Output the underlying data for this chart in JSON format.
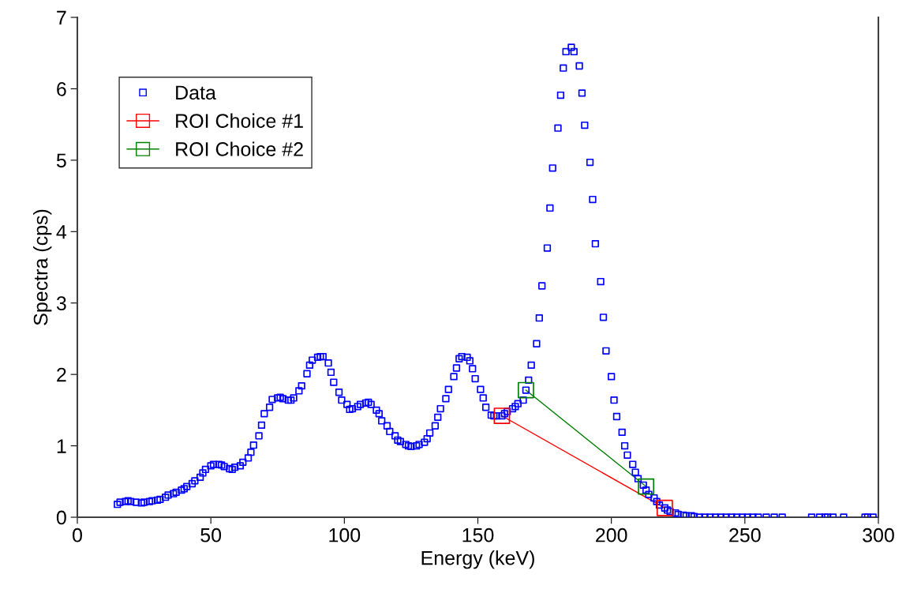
{
  "chart_data": {
    "type": "scatter",
    "xlabel": "Energy (keV)",
    "ylabel": "Spectra (cps)",
    "xlim": [
      0,
      300
    ],
    "xticks": [
      0,
      50,
      100,
      150,
      200,
      250,
      300
    ],
    "ylim": [
      0,
      7
    ],
    "yticks": [
      0,
      1,
      2,
      3,
      4,
      5,
      6,
      7
    ],
    "grid": false,
    "legend": "top left",
    "marker": "square",
    "series": [
      {
        "name": "Data",
        "color": "#0000ff",
        "x": [
          15,
          16,
          18,
          19,
          20,
          22,
          24,
          25,
          27,
          28,
          30,
          31,
          33,
          34,
          36,
          37,
          39,
          40,
          41,
          43,
          44,
          46,
          47,
          48,
          50,
          51,
          53,
          54,
          55,
          57,
          58,
          59,
          61,
          62,
          64,
          65,
          66,
          68,
          69,
          70,
          72,
          73,
          75,
          76,
          77,
          79,
          80,
          81,
          83,
          84,
          86,
          87,
          88,
          90,
          91,
          92,
          94,
          95,
          96,
          98,
          99,
          101,
          102,
          103,
          105,
          106,
          108,
          109,
          110,
          112,
          113,
          114,
          116,
          117,
          119,
          120,
          121,
          123,
          124,
          125,
          127,
          128,
          130,
          131,
          132,
          134,
          135,
          136,
          138,
          139,
          141,
          142,
          143,
          144,
          146,
          147,
          148,
          149,
          151,
          152,
          153,
          155,
          156,
          157,
          159,
          160,
          161,
          163,
          164,
          165,
          167,
          168,
          169,
          170,
          172,
          173,
          174,
          176,
          177,
          178,
          180,
          181,
          182,
          183,
          185,
          186,
          188,
          189,
          190,
          192,
          193,
          194,
          196,
          197,
          198,
          200,
          201,
          202,
          204,
          205,
          206,
          208,
          209,
          210,
          212,
          213,
          214,
          216,
          217,
          218,
          220,
          221,
          222,
          224,
          225,
          227,
          228,
          230,
          231,
          233,
          235,
          237,
          239,
          241,
          243,
          245,
          247,
          249,
          251,
          253,
          255,
          258,
          261,
          264,
          275,
          278,
          280,
          281,
          283,
          287,
          295,
          296,
          298
        ],
        "values": [
          0.18,
          0.21,
          0.22,
          0.23,
          0.22,
          0.21,
          0.2,
          0.21,
          0.22,
          0.23,
          0.24,
          0.25,
          0.28,
          0.31,
          0.33,
          0.35,
          0.38,
          0.4,
          0.43,
          0.47,
          0.51,
          0.56,
          0.62,
          0.67,
          0.72,
          0.74,
          0.74,
          0.73,
          0.71,
          0.68,
          0.67,
          0.7,
          0.72,
          0.77,
          0.83,
          0.91,
          1.01,
          1.14,
          1.29,
          1.45,
          1.54,
          1.65,
          1.67,
          1.68,
          1.66,
          1.64,
          1.64,
          1.67,
          1.77,
          1.84,
          2.01,
          2.13,
          2.2,
          2.24,
          2.25,
          2.25,
          2.16,
          2.03,
          1.89,
          1.75,
          1.64,
          1.58,
          1.51,
          1.52,
          1.55,
          1.58,
          1.6,
          1.61,
          1.58,
          1.5,
          1.45,
          1.35,
          1.28,
          1.2,
          1.14,
          1.08,
          1.06,
          1.02,
          1.0,
          0.99,
          1.0,
          1.02,
          1.05,
          1.1,
          1.18,
          1.28,
          1.4,
          1.52,
          1.66,
          1.79,
          1.97,
          2.09,
          2.22,
          2.25,
          2.24,
          2.19,
          2.08,
          1.94,
          1.79,
          1.67,
          1.54,
          1.43,
          1.42,
          1.42,
          1.42,
          1.45,
          1.48,
          1.52,
          1.55,
          1.59,
          1.64,
          1.78,
          1.92,
          2.13,
          2.43,
          2.79,
          3.24,
          3.77,
          4.33,
          4.89,
          5.45,
          5.91,
          6.29,
          6.52,
          6.58,
          6.52,
          6.32,
          5.94,
          5.49,
          4.97,
          4.45,
          3.83,
          3.3,
          2.8,
          2.33,
          1.97,
          1.64,
          1.41,
          1.19,
          1.0,
          0.87,
          0.74,
          0.63,
          0.54,
          0.45,
          0.38,
          0.32,
          0.27,
          0.22,
          0.17,
          0.13,
          0.1,
          0.08,
          0.06,
          0.04,
          0.03,
          0.02,
          0.02,
          0.01,
          0,
          0,
          0,
          0,
          0,
          0,
          0,
          0,
          0,
          0,
          0,
          0,
          0,
          0,
          0,
          0,
          0,
          0,
          0,
          0,
          0,
          0,
          0,
          0
        ]
      },
      {
        "name": "ROI Choice #1",
        "type": "line",
        "color": "#ff0000",
        "x": [
          159,
          220
        ],
        "values": [
          1.42,
          0.13
        ]
      },
      {
        "name": "ROI Choice #2",
        "type": "line",
        "color": "#008000",
        "x": [
          168,
          213
        ],
        "values": [
          1.78,
          0.43
        ]
      }
    ]
  }
}
